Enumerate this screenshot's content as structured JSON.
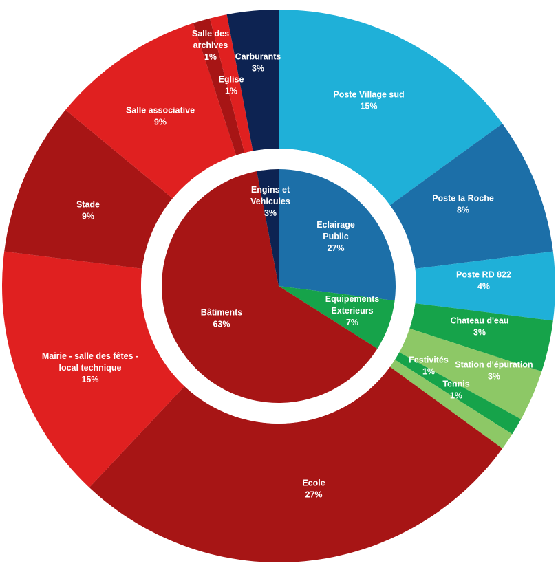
{
  "chart_data": {
    "type": "pie",
    "style": "sunburst-donut",
    "title": "",
    "inner_ring": [
      {
        "name": "Eclairage Public",
        "percent": "27%",
        "value": 27,
        "color": "#1c6fa8",
        "label_lines": [
          "Eclairage",
          "Public"
        ]
      },
      {
        "name": "Equipements Exterieurs",
        "percent": "7%",
        "value": 7,
        "color": "#16a34a",
        "label_lines": [
          "Equipements",
          "Exterieurs"
        ]
      },
      {
        "name": "Bâtiments",
        "percent": "63%",
        "value": 63,
        "color": "#a71515",
        "label_lines": [
          "Bâtiments"
        ]
      },
      {
        "name": "Engins et Vehicules",
        "percent": "3%",
        "value": 3,
        "color": "#0d2352",
        "label_lines": [
          "Engins et",
          "Vehicules"
        ]
      }
    ],
    "outer_ring": [
      {
        "name": "Poste Village sud",
        "percent": "15%",
        "value": 15,
        "color": "#1fb0d8",
        "label_lines": [
          "Poste Village sud"
        ]
      },
      {
        "name": "Poste la Roche",
        "percent": "8%",
        "value": 8,
        "color": "#1c6fa8",
        "label_lines": [
          "Poste la Roche"
        ]
      },
      {
        "name": "Poste RD 822",
        "percent": "4%",
        "value": 4,
        "color": "#1fb0d8",
        "label_lines": [
          "Poste RD 822"
        ]
      },
      {
        "name": "Chateau d'eau",
        "percent": "3%",
        "value": 3,
        "color": "#16a34a",
        "label_lines": [
          "Chateau d'eau"
        ]
      },
      {
        "name": "Station d'épuration",
        "percent": "3%",
        "value": 3,
        "color": "#8dc866",
        "label_lines": [
          "Station d'épuration"
        ]
      },
      {
        "name": "Festivités",
        "percent": "1%",
        "value": 1,
        "color": "#16a34a",
        "label_lines": [
          "Festivités"
        ]
      },
      {
        "name": "Tennis",
        "percent": "1%",
        "value": 1,
        "color": "#8dc866",
        "label_lines": [
          "Tennis"
        ]
      },
      {
        "name": "Ecole",
        "percent": "27%",
        "value": 27,
        "color": "#a71515",
        "label_lines": [
          "Ecole"
        ]
      },
      {
        "name": "Mairie - salle des fêtes - local technique",
        "percent": "15%",
        "value": 15,
        "color": "#e02020",
        "label_lines": [
          "Mairie - salle des fêtes -",
          "local technique"
        ]
      },
      {
        "name": "Stade",
        "percent": "9%",
        "value": 9,
        "color": "#a71515",
        "label_lines": [
          "Stade"
        ]
      },
      {
        "name": "Salle associative",
        "percent": "9%",
        "value": 9,
        "color": "#e02020",
        "label_lines": [
          "Salle associative"
        ]
      },
      {
        "name": "Eglise",
        "percent": "1%",
        "value": 1,
        "color": "#a71515",
        "label_lines": [
          "Eglise"
        ]
      },
      {
        "name": "Salle des archives",
        "percent": "1%",
        "value": 1,
        "color": "#e02020",
        "label_lines": [
          "Salle des",
          "archives"
        ]
      },
      {
        "name": "Carburants",
        "percent": "3%",
        "value": 3,
        "color": "#0d2352",
        "label_lines": [
          "Carburants"
        ]
      }
    ]
  }
}
